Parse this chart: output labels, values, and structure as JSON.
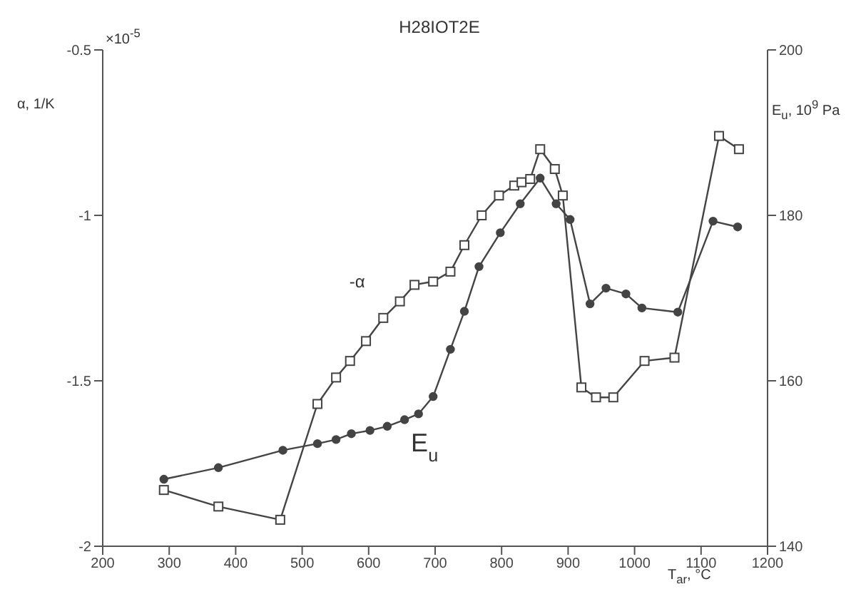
{
  "chart_data": {
    "type": "line",
    "title": "H28IOT2E",
    "xlabel": "T$_{ar}$, °C",
    "ylabel": "α, 1/K",
    "y2label": "E$_{u}$, 10$^{9}$ Pa",
    "annotations": [
      "×10$^{-5}$"
    ],
    "xlim": [
      200,
      1200
    ],
    "xticks": [
      200,
      300,
      400,
      500,
      600,
      700,
      800,
      900,
      1000,
      1100,
      1200
    ],
    "ylim": [
      -2,
      -0.5
    ],
    "yticks": [
      -2,
      -1.5,
      -1,
      -0.5
    ],
    "y2lim": [
      140,
      200
    ],
    "y2ticks": [
      140,
      160,
      180,
      200
    ],
    "grid": false,
    "legend": false,
    "line_style": "solid",
    "series": [
      {
        "name": "-α",
        "color": "#444444",
        "marker": "square",
        "x": [
          292,
          374,
          467,
          523,
          551,
          572,
          596,
          622,
          647,
          669,
          697,
          723,
          744,
          770,
          796,
          819,
          830,
          843,
          858,
          880,
          892,
          920,
          942,
          968,
          1015,
          1060,
          1127,
          1157
        ],
        "values": [
          -1.83,
          -1.88,
          -1.92,
          -1.57,
          -1.49,
          -1.44,
          -1.38,
          -1.31,
          -1.26,
          -1.21,
          -1.2,
          -1.17,
          -1.09,
          -1.0,
          -0.94,
          -0.91,
          -0.9,
          -0.89,
          -0.8,
          -0.86,
          -0.94,
          -1.52,
          -1.55,
          -1.55,
          -1.44,
          -1.43,
          -0.76,
          -0.8
        ]
      },
      {
        "name": "E$_{u}$",
        "color": "#444444",
        "marker": "circle",
        "axis": "y2",
        "x": [
          292,
          374,
          471,
          523,
          551,
          574,
          602,
          628,
          654,
          675,
          697,
          723,
          744,
          766,
          798,
          828,
          858,
          882,
          903,
          933,
          957,
          987,
          1011,
          1065,
          1118,
          1155
        ],
        "values": [
          148.1,
          149.5,
          151.6,
          152.4,
          152.9,
          153.6,
          154.0,
          154.5,
          155.3,
          156.0,
          158.1,
          163.8,
          168.4,
          173.8,
          177.9,
          181.4,
          184.5,
          181.4,
          179.5,
          169.3,
          171.2,
          170.5,
          168.8,
          168.3,
          179.3,
          178.6
        ]
      }
    ]
  }
}
